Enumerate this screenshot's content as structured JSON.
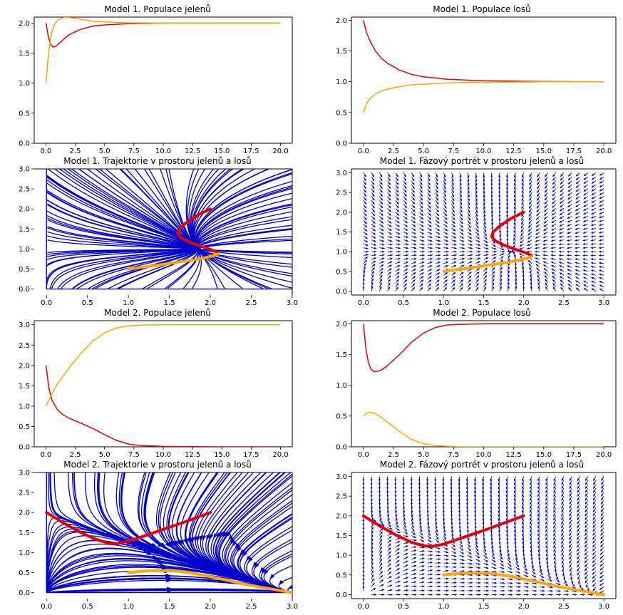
{
  "figure": {
    "background": "#ffffff",
    "colors": {
      "red": "#e60000",
      "orange": "#ffa500",
      "blue": "#0000cc",
      "axis": "#000000"
    }
  },
  "chart_data": [
    {
      "id": "p1",
      "type": "line",
      "title": "Model 1. Populace jelenů",
      "xlim": [
        -1,
        21
      ],
      "ylim": [
        0,
        2.1
      ],
      "xticks": [
        0,
        2.5,
        5,
        7.5,
        10,
        12.5,
        15,
        17.5,
        20
      ],
      "xtick_labels": [
        "0.0",
        "2.5",
        "5.0",
        "7.5",
        "10.0",
        "12.5",
        "15.0",
        "17.5",
        "20.0"
      ],
      "yticks": [
        0,
        0.5,
        1,
        1.5,
        2
      ],
      "ytick_labels": [
        "0.0",
        "0.5",
        "1.0",
        "1.5",
        "2.0"
      ],
      "series": [
        {
          "color": "#e60000",
          "x": [
            0,
            0.2,
            0.4,
            0.6,
            0.8,
            1,
            1.5,
            2,
            3,
            4,
            5,
            7,
            10,
            15,
            20
          ],
          "y": [
            2.0,
            1.78,
            1.65,
            1.6,
            1.61,
            1.64,
            1.73,
            1.81,
            1.9,
            1.95,
            1.97,
            1.99,
            2.0,
            2.0,
            2.0
          ]
        },
        {
          "color": "#ffa500",
          "x": [
            0,
            0.25,
            0.5,
            0.75,
            1,
            1.5,
            2,
            2.5,
            3,
            4,
            5,
            7,
            10,
            15,
            20
          ],
          "y": [
            1.0,
            1.55,
            1.85,
            1.98,
            2.05,
            2.09,
            2.09,
            2.08,
            2.06,
            2.03,
            2.02,
            2.005,
            2.0,
            2.0,
            2.0
          ]
        }
      ]
    },
    {
      "id": "p2",
      "type": "line",
      "title": "Model 1. Populace losů",
      "xlim": [
        -1,
        21
      ],
      "ylim": [
        0,
        2.05
      ],
      "xticks": [
        0,
        2.5,
        5,
        7.5,
        10,
        12.5,
        15,
        17.5,
        20
      ],
      "xtick_labels": [
        "0.0",
        "2.5",
        "5.0",
        "7.5",
        "10.0",
        "12.5",
        "15.0",
        "17.5",
        "20.0"
      ],
      "yticks": [
        0,
        0.5,
        1,
        1.5,
        2
      ],
      "ytick_labels": [
        "0.0",
        "0.5",
        "1.0",
        "1.5",
        "2.0"
      ],
      "series": [
        {
          "color": "#e60000",
          "x": [
            0,
            0.25,
            0.5,
            1,
            1.5,
            2,
            3,
            4,
            5,
            7,
            10,
            15,
            20
          ],
          "y": [
            2.0,
            1.8,
            1.68,
            1.5,
            1.38,
            1.3,
            1.19,
            1.12,
            1.08,
            1.04,
            1.015,
            1.003,
            1.0
          ]
        },
        {
          "color": "#ffa500",
          "x": [
            0,
            0.25,
            0.5,
            1,
            1.5,
            2,
            3,
            4,
            5,
            7,
            10,
            15,
            20
          ],
          "y": [
            0.5,
            0.64,
            0.72,
            0.8,
            0.85,
            0.88,
            0.92,
            0.95,
            0.96,
            0.98,
            0.99,
            1.0,
            1.0
          ]
        }
      ]
    },
    {
      "id": "p3",
      "type": "streamplot",
      "title": "Model 1. Trajektorie v prostoru jelenů a losů",
      "model": 1,
      "xlim": [
        -0.15,
        3.0
      ],
      "ylim": [
        -0.15,
        3.0
      ],
      "xticks": [
        0,
        0.5,
        1,
        1.5,
        2,
        2.5,
        3
      ],
      "xtick_labels": [
        "0.0",
        "0.5",
        "1.0",
        "1.5",
        "2.0",
        "2.5",
        "3.0"
      ],
      "yticks": [
        0,
        0.5,
        1,
        1.5,
        2,
        2.5,
        3
      ],
      "ytick_labels": [
        "0.0",
        "0.5",
        "1.0",
        "1.5",
        "2.0",
        "2.5",
        "3.0"
      ],
      "trajectories": [
        {
          "color": "#e60000",
          "x": [
            2.0,
            1.85,
            1.7,
            1.62,
            1.6,
            1.65,
            1.75,
            1.88,
            2.0,
            2.06,
            2.1
          ],
          "y": [
            2.0,
            1.85,
            1.65,
            1.5,
            1.38,
            1.27,
            1.17,
            1.07,
            0.99,
            0.94,
            0.9
          ]
        },
        {
          "color": "#ffa500",
          "x": [
            1.0,
            1.3,
            1.6,
            1.8,
            1.95,
            2.05,
            2.1
          ],
          "y": [
            0.5,
            0.58,
            0.67,
            0.73,
            0.79,
            0.84,
            0.88
          ]
        }
      ]
    },
    {
      "id": "p4",
      "type": "quiver",
      "title": "Model 1. Fázový portrét v prostoru jelenů a losů",
      "model": 1,
      "xlim": [
        -0.15,
        3.15
      ],
      "ylim": [
        -0.1,
        3.1
      ],
      "xticks": [
        0,
        0.5,
        1,
        1.5,
        2,
        2.5,
        3
      ],
      "xtick_labels": [
        "0.0",
        "0.5",
        "1.0",
        "1.5",
        "2.0",
        "2.5",
        "3.0"
      ],
      "yticks": [
        0,
        0.5,
        1,
        1.5,
        2,
        2.5,
        3
      ],
      "ytick_labels": [
        "0.0",
        "0.5",
        "1.0",
        "1.5",
        "2.0",
        "2.5",
        "3.0"
      ],
      "trajectories": [
        {
          "color": "#e60000",
          "x": [
            2.0,
            1.85,
            1.7,
            1.62,
            1.6,
            1.65,
            1.75,
            1.88,
            2.0,
            2.06,
            2.1
          ],
          "y": [
            2.0,
            1.85,
            1.65,
            1.5,
            1.38,
            1.27,
            1.17,
            1.07,
            0.99,
            0.94,
            0.9
          ]
        },
        {
          "color": "#ffa500",
          "x": [
            1.0,
            1.3,
            1.6,
            1.8,
            1.95,
            2.05,
            2.1
          ],
          "y": [
            0.5,
            0.58,
            0.67,
            0.73,
            0.79,
            0.84,
            0.88
          ]
        }
      ]
    },
    {
      "id": "p5",
      "type": "line",
      "title": "Model 2. Populace jelenů",
      "xlim": [
        -1,
        21
      ],
      "ylim": [
        0,
        3.1
      ],
      "xticks": [
        0,
        2.5,
        5,
        7.5,
        10,
        12.5,
        15,
        17.5,
        20
      ],
      "xtick_labels": [
        "0.0",
        "2.5",
        "5.0",
        "7.5",
        "10.0",
        "12.5",
        "15.0",
        "17.5",
        "20.0"
      ],
      "yticks": [
        0,
        0.5,
        1,
        1.5,
        2,
        2.5,
        3
      ],
      "ytick_labels": [
        "0.0",
        "0.5",
        "1.0",
        "1.5",
        "2.0",
        "2.5",
        "3.0"
      ],
      "series": [
        {
          "color": "#e60000",
          "x": [
            0,
            0.25,
            0.5,
            1,
            1.5,
            2,
            3,
            4,
            5,
            6,
            7,
            8,
            10,
            15,
            20
          ],
          "y": [
            2.0,
            1.45,
            1.15,
            0.9,
            0.78,
            0.7,
            0.58,
            0.45,
            0.3,
            0.16,
            0.07,
            0.03,
            0.01,
            0.0,
            0.0
          ]
        },
        {
          "color": "#ffa500",
          "x": [
            0,
            0.5,
            1,
            2,
            3,
            4,
            5,
            6,
            7,
            8,
            10,
            15,
            20
          ],
          "y": [
            1.0,
            1.3,
            1.55,
            1.95,
            2.3,
            2.6,
            2.8,
            2.92,
            2.97,
            2.99,
            3.0,
            3.0,
            3.0
          ]
        }
      ]
    },
    {
      "id": "p6",
      "type": "line",
      "title": "Model 2. Populace losů",
      "xlim": [
        -1,
        21
      ],
      "ylim": [
        0,
        2.05
      ],
      "xticks": [
        0,
        2.5,
        5,
        7.5,
        10,
        12.5,
        15,
        17.5,
        20
      ],
      "xtick_labels": [
        "0.0",
        "2.5",
        "5.0",
        "7.5",
        "10.0",
        "12.5",
        "15.0",
        "17.5",
        "20.0"
      ],
      "yticks": [
        0,
        0.5,
        1,
        1.5,
        2
      ],
      "ytick_labels": [
        "0.0",
        "0.5",
        "1.0",
        "1.5",
        "2.0"
      ],
      "series": [
        {
          "color": "#e60000",
          "x": [
            0,
            0.2,
            0.4,
            0.6,
            0.8,
            1,
            1.5,
            2,
            3,
            4,
            5,
            6,
            7,
            8,
            10,
            15,
            20
          ],
          "y": [
            2.0,
            1.6,
            1.38,
            1.27,
            1.23,
            1.22,
            1.25,
            1.32,
            1.5,
            1.7,
            1.85,
            1.94,
            1.98,
            1.99,
            2.0,
            2.0,
            2.0
          ]
        },
        {
          "color": "#ffa500",
          "x": [
            0,
            0.3,
            0.6,
            1,
            1.5,
            2,
            3,
            4,
            5,
            6,
            7,
            8,
            10,
            15,
            20
          ],
          "y": [
            0.5,
            0.55,
            0.56,
            0.54,
            0.48,
            0.4,
            0.25,
            0.12,
            0.05,
            0.02,
            0.01,
            0.0,
            0.0,
            0.0,
            0.0
          ]
        }
      ]
    },
    {
      "id": "p7",
      "type": "streamplot",
      "title": "Model 2. Trajektorie v prostoru jelenů a losů",
      "model": 2,
      "xlim": [
        -0.15,
        3.0
      ],
      "ylim": [
        -0.15,
        3.0
      ],
      "xticks": [
        0,
        0.5,
        1,
        1.5,
        2,
        2.5,
        3
      ],
      "xtick_labels": [
        "0.0",
        "0.5",
        "1.0",
        "1.5",
        "2.0",
        "2.5",
        "3.0"
      ],
      "yticks": [
        0,
        0.5,
        1,
        1.5,
        2,
        2.5,
        3
      ],
      "ytick_labels": [
        "0.0",
        "0.5",
        "1.0",
        "1.5",
        "2.0",
        "2.5",
        "3.0"
      ],
      "trajectories": [
        {
          "color": "#e60000",
          "x": [
            0.0,
            0.2,
            0.4,
            0.6,
            0.75,
            0.85,
            1.0,
            1.2,
            1.4,
            1.6,
            1.8,
            2.0
          ],
          "y": [
            2.0,
            1.75,
            1.52,
            1.33,
            1.24,
            1.22,
            1.28,
            1.42,
            1.56,
            1.7,
            1.85,
            2.0
          ]
        },
        {
          "color": "#ffa500",
          "x": [
            1.0,
            1.2,
            1.4,
            1.6,
            1.8,
            2.0,
            2.2,
            2.4,
            2.6,
            2.8,
            3.0
          ],
          "y": [
            0.5,
            0.54,
            0.55,
            0.54,
            0.48,
            0.4,
            0.31,
            0.22,
            0.14,
            0.07,
            0.0
          ]
        }
      ]
    },
    {
      "id": "p8",
      "type": "quiver",
      "title": "Model 2. Fázový portrét v prostoru jelenů a losů",
      "model": 2,
      "xlim": [
        -0.15,
        3.15
      ],
      "ylim": [
        -0.1,
        3.1
      ],
      "xticks": [
        0,
        0.5,
        1,
        1.5,
        2,
        2.5,
        3
      ],
      "xtick_labels": [
        "0.0",
        "0.5",
        "1.0",
        "1.5",
        "2.0",
        "2.5",
        "3.0"
      ],
      "yticks": [
        0,
        0.5,
        1,
        1.5,
        2,
        2.5,
        3
      ],
      "ytick_labels": [
        "0.0",
        "0.5",
        "1.0",
        "1.5",
        "2.0",
        "2.5",
        "3.0"
      ],
      "trajectories": [
        {
          "color": "#e60000",
          "x": [
            0.0,
            0.2,
            0.4,
            0.6,
            0.75,
            0.85,
            1.0,
            1.2,
            1.4,
            1.6,
            1.8,
            2.0
          ],
          "y": [
            2.0,
            1.75,
            1.52,
            1.33,
            1.24,
            1.22,
            1.28,
            1.42,
            1.56,
            1.7,
            1.85,
            2.0
          ]
        },
        {
          "color": "#ffa500",
          "x": [
            1.0,
            1.2,
            1.4,
            1.6,
            1.8,
            2.0,
            2.2,
            2.4,
            2.6,
            2.8,
            3.0
          ],
          "y": [
            0.5,
            0.54,
            0.55,
            0.54,
            0.48,
            0.4,
            0.31,
            0.22,
            0.14,
            0.07,
            0.0
          ]
        }
      ]
    }
  ]
}
